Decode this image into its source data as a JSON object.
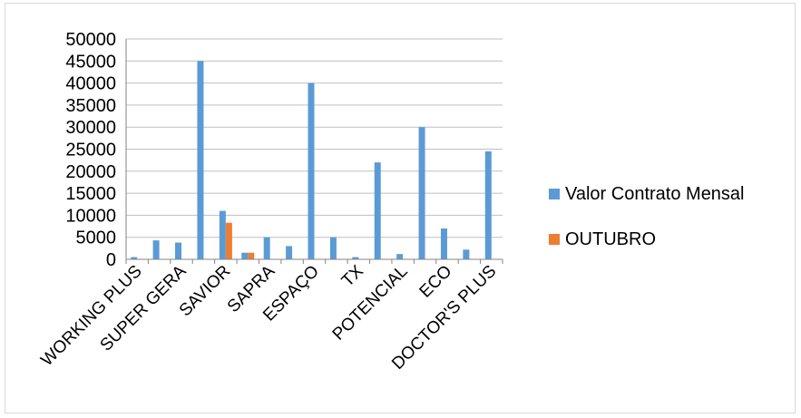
{
  "chart_data": {
    "type": "bar",
    "title": "",
    "xlabel": "",
    "ylabel": "",
    "ylim": [
      0,
      50000
    ],
    "yticks": [
      "0",
      "5000",
      "10000",
      "15000",
      "20000",
      "25000",
      "30000",
      "35000",
      "40000",
      "45000",
      "50000"
    ],
    "grid": true,
    "legend_position": "right",
    "categories": [
      "WORKING PLUS",
      "",
      "SUPER GERA",
      "",
      "SAVIOR",
      "",
      "SAPRA",
      "",
      "ESPAÇO",
      "",
      "TX",
      "",
      "POTENCIAL",
      "",
      "ECO",
      "",
      "DOCTOR'S PLUS"
    ],
    "series": [
      {
        "name": "Valor Contrato Mensal",
        "color": "#5b9bd5",
        "values": [
          500,
          4300,
          3800,
          45000,
          11000,
          1500,
          5000,
          3000,
          40000,
          5000,
          500,
          22000,
          1200,
          30000,
          7000,
          2200,
          24500
        ]
      },
      {
        "name": "OUTUBRO",
        "color": "#ed7d31",
        "values": [
          null,
          null,
          null,
          null,
          8300,
          1500,
          null,
          null,
          null,
          null,
          null,
          null,
          null,
          null,
          null,
          null,
          null
        ]
      }
    ]
  }
}
